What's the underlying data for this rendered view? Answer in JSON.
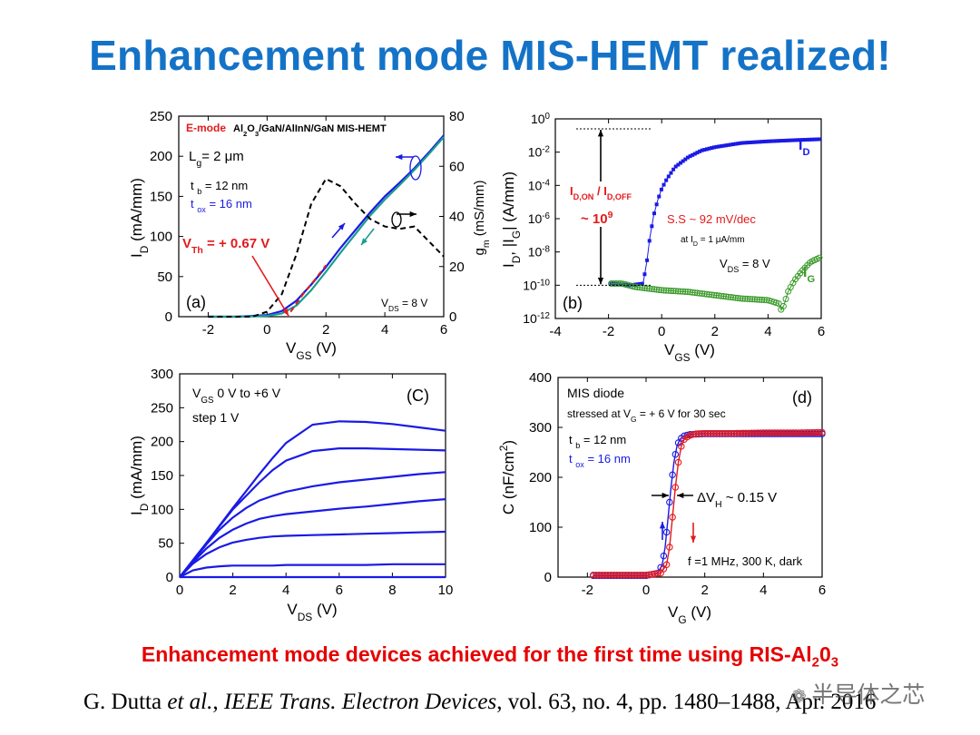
{
  "slide": {
    "title": "Enhancement mode MIS-HEMT realized!",
    "caption_main": "Enhancement mode devices achieved for the first time using RIS-Al",
    "caption_sub": "2",
    "caption_end": "0",
    "caption_sub2": "3",
    "citation": {
      "author": "G. Dutta ",
      "etal": "et al.",
      "sep": ", ",
      "journal": "IEEE Trans. Electron Devices",
      "details": ", vol. 63, no. 4, pp. 1480–1488, Apr. 2016"
    },
    "watermark": "半导体之芯",
    "watermark_icon": "wechat-icon"
  },
  "colors": {
    "blue": "#1a1ae6",
    "teal": "#1a9d8f",
    "red": "#e31a1c",
    "green": "#3a9a2a",
    "black": "#000000",
    "title": "#1473c7"
  },
  "chart_data": [
    {
      "id": "a",
      "type": "line",
      "panel_label": "(a)",
      "title_emode": "E-mode",
      "title_rest": "Al2O3/GaN/AlInN/GaN MIS-HEMT",
      "lg": "Lg= 2 μm",
      "tb": "t b = 12 nm",
      "tox": "t ox = 16 nm",
      "vth": "VTh = + 0.67 V",
      "vds": "VDS = 8 V",
      "xlabel": "VGS (V)",
      "ylabel": "ID (mA/mm)",
      "y2label": "gm (mS/mm)",
      "xlim": [
        -3,
        6
      ],
      "ylim": [
        0,
        250
      ],
      "y2lim": [
        0,
        80
      ],
      "xticks": [
        -2,
        0,
        2,
        4,
        6
      ],
      "yticks": [
        0,
        50,
        100,
        150,
        200,
        250
      ],
      "y2ticks": [
        0,
        20,
        40,
        60,
        80
      ],
      "series": [
        {
          "name": "ID forward",
          "axis": "left",
          "color": "blue",
          "x": [
            -2,
            -1,
            0,
            0.5,
            1,
            1.5,
            2,
            2.5,
            3,
            3.5,
            4,
            4.5,
            5,
            5.5,
            6
          ],
          "y": [
            0,
            0,
            2,
            7,
            20,
            40,
            62,
            86,
            108,
            130,
            150,
            167,
            185,
            205,
            226
          ]
        },
        {
          "name": "ID reverse",
          "axis": "left",
          "color": "teal",
          "x": [
            -2,
            -1,
            0,
            0.5,
            1,
            1.5,
            2,
            2.5,
            3,
            3.5,
            4,
            4.5,
            5,
            5.5,
            6
          ],
          "y": [
            0,
            0,
            1,
            4,
            14,
            33,
            56,
            80,
            103,
            126,
            146,
            164,
            183,
            203,
            224
          ]
        },
        {
          "name": "ID fit",
          "axis": "left",
          "color": "red",
          "dashed": true,
          "x": [
            0.8,
            1.2,
            1.6,
            2.0
          ],
          "y": [
            6,
            27,
            45,
            64
          ]
        },
        {
          "name": "gm",
          "axis": "right",
          "color": "black",
          "dashed": true,
          "x": [
            -2,
            -0.5,
            0,
            0.5,
            1,
            1.5,
            2,
            2.5,
            3,
            3.5,
            4,
            4.5,
            5,
            5.5,
            6
          ],
          "y": [
            0,
            0,
            2,
            9,
            25,
            45,
            55,
            52,
            45,
            39,
            36,
            35,
            36,
            30,
            24
          ]
        }
      ]
    },
    {
      "id": "b",
      "type": "line",
      "panel_label": "(b)",
      "xlabel": "VGS (V)",
      "ylabel": "ID, |IG| (A/mm)",
      "yscale": "log",
      "xlim": [
        -4,
        6
      ],
      "ylim_exp": [
        -12,
        0
      ],
      "xticks": [
        -4,
        -2,
        0,
        2,
        4,
        6
      ],
      "yticks_exp": [
        -12,
        -10,
        -8,
        -6,
        -4,
        -2,
        0
      ],
      "on_off_label": "ID,ON / ID,OFF",
      "on_off_value": "~ 109",
      "ss": "S.S ~ 92 mV/dec",
      "at_id": "at ID = 1 μA/mm",
      "vds": "VDS = 8 V",
      "id_label": "ID",
      "ig_label": "IG",
      "series": [
        {
          "name": "ID",
          "color": "blue",
          "x": [
            -1.9,
            -1.2,
            -0.7,
            -0.55,
            -0.45,
            -0.3,
            -0.15,
            0,
            0.2,
            0.5,
            1,
            1.5,
            2,
            3,
            4,
            5,
            6
          ],
          "log_y": [
            -9.9,
            -10,
            -9.9,
            -8.5,
            -7.2,
            -5.8,
            -4.9,
            -4.2,
            -3.6,
            -2.9,
            -2.3,
            -1.9,
            -1.7,
            -1.45,
            -1.35,
            -1.28,
            -1.22
          ]
        },
        {
          "name": "IG",
          "color": "green",
          "x": [
            -1.9,
            -1.5,
            -1,
            0,
            1,
            2,
            3,
            4,
            4.4,
            4.5,
            4.6,
            4.75,
            5,
            5.3,
            5.6,
            6
          ],
          "log_y": [
            -9.9,
            -9.9,
            -10.1,
            -10.3,
            -10.4,
            -10.6,
            -10.8,
            -10.9,
            -11.1,
            -11.5,
            -11.2,
            -10.4,
            -9.7,
            -9.1,
            -8.6,
            -8.3
          ]
        }
      ]
    },
    {
      "id": "c",
      "type": "line",
      "panel_label": "(C)",
      "vgs_label": "VGS  0 V to +6 V",
      "step_label": "step 1 V",
      "xlabel": "VDS (V)",
      "ylabel": "ID (mA/mm)",
      "xlim": [
        0,
        10
      ],
      "ylim": [
        0,
        300
      ],
      "xticks": [
        0,
        2,
        4,
        6,
        8,
        10
      ],
      "yticks": [
        0,
        50,
        100,
        150,
        200,
        250,
        300
      ],
      "x": [
        0,
        0.5,
        1,
        1.5,
        2,
        2.5,
        3,
        3.5,
        4,
        5,
        6,
        7,
        8,
        9,
        10
      ],
      "series": [
        {
          "name": "VGS=0 V",
          "values": [
            0,
            0,
            0,
            0,
            0,
            0,
            0,
            0,
            0,
            0,
            0,
            0,
            0,
            0,
            0
          ]
        },
        {
          "name": "VGS=1 V",
          "values": [
            0,
            10,
            14,
            16,
            17,
            17,
            17,
            17,
            18,
            18,
            18,
            18,
            19,
            19,
            19
          ]
        },
        {
          "name": "VGS=2 V",
          "values": [
            0,
            20,
            34,
            44,
            51,
            55,
            58,
            60,
            61,
            62,
            63,
            64,
            65,
            66,
            67
          ]
        },
        {
          "name": "VGS=3 V",
          "values": [
            0,
            22,
            42,
            58,
            70,
            79,
            86,
            90,
            93,
            97,
            101,
            104,
            108,
            112,
            115
          ]
        },
        {
          "name": "VGS=4 V",
          "values": [
            0,
            24,
            48,
            70,
            88,
            102,
            113,
            120,
            126,
            134,
            140,
            144,
            148,
            152,
            155
          ]
        },
        {
          "name": "VGS=5 V",
          "values": [
            0,
            25,
            50,
            75,
            100,
            120,
            140,
            158,
            172,
            186,
            190,
            190,
            189,
            188,
            187
          ]
        },
        {
          "name": "VGS=6 V",
          "values": [
            0,
            25,
            50,
            76,
            102,
            127,
            152,
            176,
            198,
            225,
            230,
            229,
            226,
            221,
            216
          ]
        }
      ]
    },
    {
      "id": "d",
      "type": "line",
      "panel_label": "(d)",
      "mis_label": "MIS diode",
      "stress_label": "stressed at VG = + 6 V for 30 sec",
      "tb": "t b = 12 nm",
      "tox": "t ox = 16 nm",
      "dvh": "ΔVH ~ 0.15 V",
      "freq_label": "f =1 MHz, 300 K, dark",
      "xlabel": "VG (V)",
      "ylabel": "C (nF/cm2)",
      "xlim": [
        -3,
        6
      ],
      "ylim": [
        0,
        400
      ],
      "xticks": [
        -2,
        0,
        2,
        4,
        6
      ],
      "yticks": [
        0,
        100,
        200,
        300,
        400
      ],
      "series": [
        {
          "name": "forward",
          "color": "blue",
          "x": [
            -1.8,
            -1,
            0,
            0.4,
            0.55,
            0.65,
            0.75,
            0.85,
            0.95,
            1.05,
            1.15,
            1.3,
            1.5,
            2,
            3,
            4,
            5,
            6
          ],
          "values": [
            3,
            3,
            3,
            8,
            25,
            60,
            120,
            180,
            230,
            262,
            276,
            283,
            286,
            287,
            287,
            287,
            287,
            287
          ]
        },
        {
          "name": "reverse",
          "color": "red",
          "x": [
            -1.8,
            -1,
            0,
            0.5,
            0.7,
            0.8,
            0.9,
            1.0,
            1.1,
            1.2,
            1.3,
            1.45,
            1.65,
            2,
            3,
            4,
            5,
            6
          ],
          "values": [
            4,
            4,
            4,
            8,
            25,
            60,
            120,
            180,
            230,
            262,
            276,
            283,
            287,
            288,
            288,
            289,
            289,
            290
          ]
        }
      ]
    }
  ]
}
